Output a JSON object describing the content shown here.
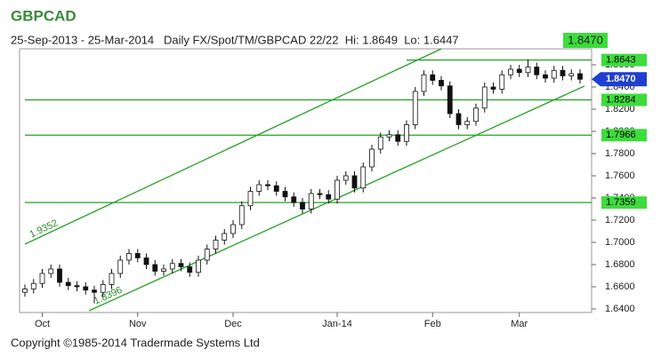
{
  "chart_data": {
    "type": "candlestick",
    "title": "GBPCAD",
    "subtitle": "25-Sep-2013 - 25-Mar-2014   Daily FX/Spot/TM/GBPCAD 22/22  Hi: 1.8649  Lo: 1.6447",
    "last_price": {
      "value": 1.847,
      "label": "1.8470"
    },
    "footer": "Copyright ©1985-2014 Tradermade Systems Ltd",
    "categories": [
      null,
      null,
      "Oct",
      null,
      null,
      null,
      null,
      null,
      null,
      null,
      null,
      null,
      null,
      "Nov",
      null,
      null,
      null,
      null,
      null,
      null,
      null,
      null,
      null,
      null,
      "Dec",
      null,
      null,
      null,
      null,
      null,
      null,
      null,
      null,
      null,
      null,
      null,
      "Jan-14",
      null,
      null,
      null,
      null,
      null,
      null,
      null,
      null,
      null,
      null,
      "Feb",
      null,
      null,
      null,
      null,
      null,
      null,
      null,
      null,
      null,
      "Mar",
      null,
      null,
      null,
      null,
      null,
      null,
      null
    ],
    "series": [
      {
        "open": [
          1.655,
          1.658,
          1.663,
          1.672,
          1.676,
          1.664,
          1.661,
          1.66,
          1.657,
          1.655,
          1.662,
          1.672,
          1.684,
          1.69,
          1.686,
          1.68,
          1.674,
          1.676,
          1.681,
          1.678,
          1.673,
          1.684,
          1.694,
          1.702,
          1.708,
          1.716,
          1.733,
          1.746,
          1.752,
          1.751,
          1.746,
          1.741,
          1.736,
          1.73,
          1.744,
          1.743,
          1.739,
          1.756,
          1.76,
          1.749,
          1.768,
          1.784,
          1.795,
          1.797,
          1.791,
          1.806,
          1.836,
          1.851,
          1.846,
          1.841,
          1.816,
          1.806,
          1.809,
          1.821,
          1.84,
          1.838,
          1.851,
          1.856,
          1.853,
          1.858,
          1.851,
          1.848,
          1.855,
          1.85,
          1.852
        ],
        "high": [
          1.662,
          1.667,
          1.676,
          1.68,
          1.68,
          1.668,
          1.665,
          1.664,
          1.661,
          1.666,
          1.676,
          1.688,
          1.694,
          1.694,
          1.69,
          1.684,
          1.68,
          1.685,
          1.685,
          1.682,
          1.688,
          1.698,
          1.706,
          1.712,
          1.72,
          1.737,
          1.75,
          1.756,
          1.756,
          1.755,
          1.75,
          1.745,
          1.74,
          1.748,
          1.748,
          1.747,
          1.76,
          1.764,
          1.764,
          1.772,
          1.788,
          1.799,
          1.801,
          1.801,
          1.81,
          1.84,
          1.855,
          1.855,
          1.85,
          1.845,
          1.82,
          1.813,
          1.825,
          1.844,
          1.844,
          1.855,
          1.86,
          1.86,
          1.865,
          1.862,
          1.855,
          1.859,
          1.859,
          1.856,
          1.856
        ],
        "low": [
          1.651,
          1.654,
          1.659,
          1.668,
          1.66,
          1.657,
          1.656,
          1.653,
          1.645,
          1.651,
          1.658,
          1.668,
          1.68,
          1.682,
          1.676,
          1.67,
          1.67,
          1.672,
          1.674,
          1.669,
          1.669,
          1.68,
          1.69,
          1.698,
          1.704,
          1.712,
          1.729,
          1.742,
          1.747,
          1.742,
          1.737,
          1.732,
          1.726,
          1.726,
          1.739,
          1.735,
          1.735,
          1.752,
          1.745,
          1.745,
          1.764,
          1.78,
          1.791,
          1.787,
          1.787,
          1.802,
          1.832,
          1.842,
          1.837,
          1.812,
          1.802,
          1.802,
          1.805,
          1.817,
          1.834,
          1.834,
          1.847,
          1.849,
          1.849,
          1.847,
          1.844,
          1.844,
          1.846,
          1.846,
          1.843
        ],
        "close": [
          1.658,
          1.663,
          1.672,
          1.676,
          1.664,
          1.661,
          1.66,
          1.657,
          1.655,
          1.662,
          1.672,
          1.684,
          1.69,
          1.686,
          1.68,
          1.674,
          1.676,
          1.681,
          1.678,
          1.673,
          1.684,
          1.694,
          1.702,
          1.708,
          1.716,
          1.733,
          1.746,
          1.752,
          1.751,
          1.746,
          1.741,
          1.736,
          1.73,
          1.744,
          1.743,
          1.739,
          1.756,
          1.76,
          1.749,
          1.768,
          1.784,
          1.795,
          1.797,
          1.791,
          1.806,
          1.836,
          1.851,
          1.846,
          1.841,
          1.816,
          1.806,
          1.809,
          1.821,
          1.84,
          1.838,
          1.851,
          1.856,
          1.853,
          1.858,
          1.851,
          1.848,
          1.855,
          1.85,
          1.852,
          1.847
        ]
      }
    ],
    "up_color": "#ffffff",
    "down_color": "#111111",
    "ylim": [
      1.6368,
      1.8744
    ],
    "yticks": [
      {
        "value": 1.64,
        "label": "1.6400"
      },
      {
        "value": 1.66,
        "label": "1.6600"
      },
      {
        "value": 1.68,
        "label": "1.6800"
      },
      {
        "value": 1.7,
        "label": "1.7000"
      },
      {
        "value": 1.72,
        "label": "1.7200"
      },
      {
        "value": 1.74,
        "label": "1.7400"
      },
      {
        "value": 1.76,
        "label": "1.7600"
      },
      {
        "value": 1.78,
        "label": "1.7800"
      },
      {
        "value": 1.8,
        "label": "1.8000"
      },
      {
        "value": 1.82,
        "label": "1.8200"
      },
      {
        "value": 1.84,
        "label": "1.8400"
      },
      {
        "value": 1.86,
        "label": "1.8600"
      }
    ],
    "levels": [
      {
        "value": 1.8643,
        "start": 44
      },
      {
        "value": 1.8284,
        "start": 0
      },
      {
        "value": 1.7966,
        "start": 0
      },
      {
        "value": 1.7359,
        "start": 0
      }
    ],
    "level_color": "#22a022",
    "level_box_color": "#3ddc3d",
    "price_box_color": "#1f3fd0",
    "trendlines": [
      {
        "label": "1.9352",
        "points": [
          [
            0,
            1.6984
          ],
          [
            48,
            1.8744
          ]
        ]
      },
      {
        "label": "1.8396",
        "points": [
          [
            7.4,
            1.6384
          ],
          [
            64.5,
            1.8408
          ]
        ]
      }
    ]
  }
}
